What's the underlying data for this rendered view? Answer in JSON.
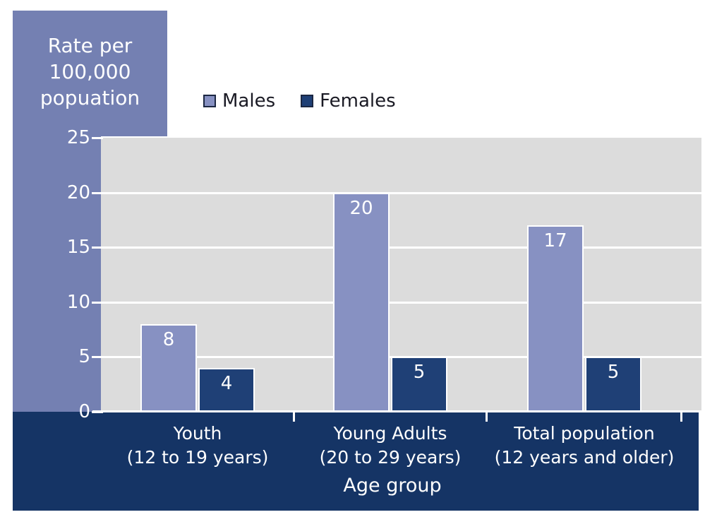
{
  "axis_panel": {
    "title_lines": [
      "Rate per",
      "100,000",
      "popuation"
    ]
  },
  "legend": {
    "items": [
      {
        "label": "Males",
        "color": "#8791c2",
        "border": "#1b2742"
      },
      {
        "label": "Females",
        "color": "#1f4076",
        "border": "#1b2742"
      }
    ]
  },
  "chart_data": {
    "type": "bar",
    "title": "Rate per 100,000 popuation",
    "xlabel": "Age group",
    "ylabel": "Rate per 100,000 popuation",
    "categories": [
      {
        "label": "Youth",
        "sublabel": "(12 to 19 years)"
      },
      {
        "label": "Young Adults",
        "sublabel": "(20 to 29 years)"
      },
      {
        "label": "Total population",
        "sublabel": "(12 years and older)"
      }
    ],
    "series": [
      {
        "name": "Males",
        "color": "#8791c2",
        "values": [
          8,
          20,
          17
        ]
      },
      {
        "name": "Females",
        "color": "#1f4076",
        "values": [
          4,
          5,
          5
        ]
      }
    ],
    "ylim": [
      0,
      25
    ],
    "yticks": [
      0,
      5,
      10,
      15,
      20,
      25
    ],
    "grid": true,
    "legend_position": "top"
  },
  "colors": {
    "panel": "#7480b2",
    "band": "#153465",
    "plot_bg": "#dcdcdc",
    "grid": "#ffffff",
    "text_on_dark": "#ffffff",
    "legend_text": "#1a1a24",
    "page_bg": "#ffffff"
  }
}
